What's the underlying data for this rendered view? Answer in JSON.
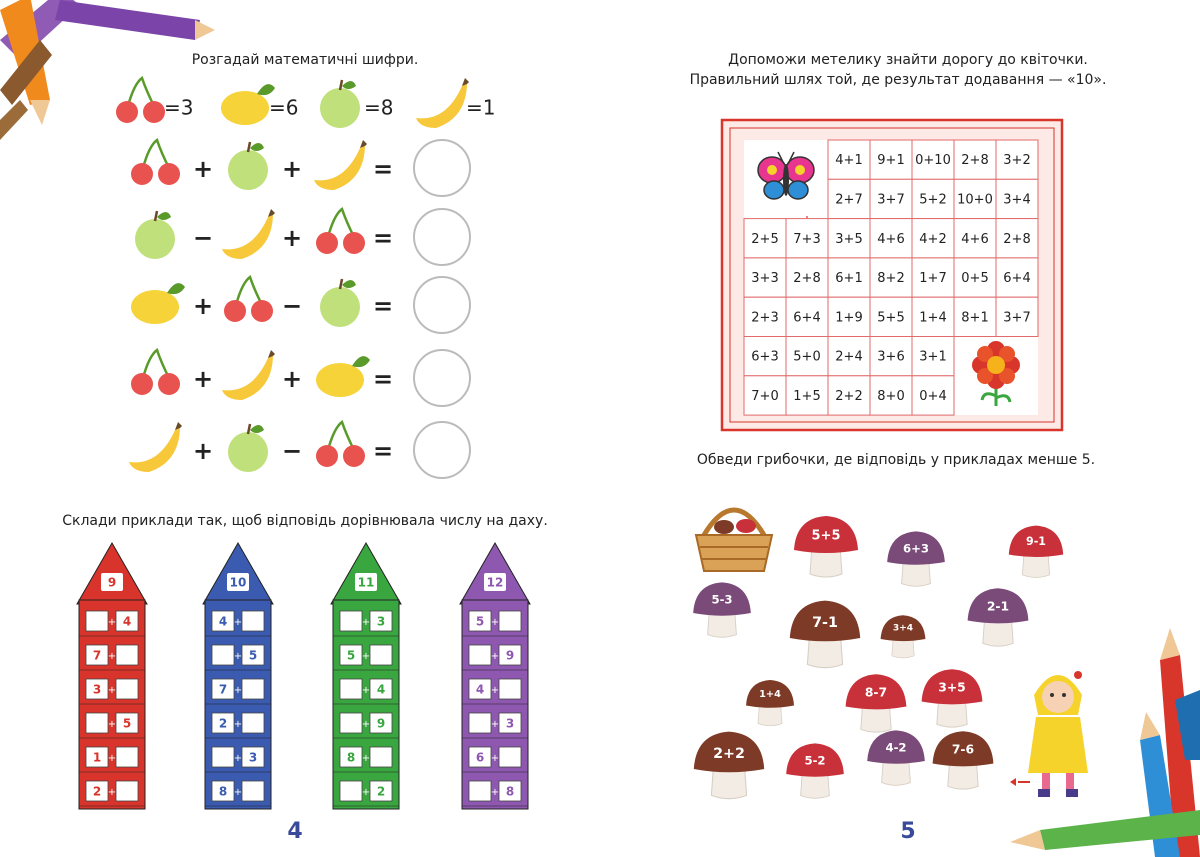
{
  "left": {
    "title": "Розгадай математичні шифри.",
    "key": [
      "=3",
      "=6",
      "=8",
      "=1"
    ],
    "equations": [
      [
        "+",
        "+",
        "="
      ],
      [
        "−",
        "+",
        "="
      ],
      [
        "+",
        "−",
        "="
      ],
      [
        "+",
        "+",
        "="
      ],
      [
        "+",
        "−",
        "="
      ]
    ],
    "houses_title": "Склади приклади так, щоб відповідь дорівнювала числу на даху.",
    "plus": "+",
    "houses": [
      {
        "roof": "9",
        "rows": [
          {
            "second": "4"
          },
          {
            "first": "7"
          },
          {
            "first": "3"
          },
          {
            "second": "5"
          },
          {
            "first": "1"
          },
          {
            "first": "2"
          }
        ]
      },
      {
        "roof": "10",
        "rows": [
          {
            "first": "4"
          },
          {
            "second": "5"
          },
          {
            "first": "7"
          },
          {
            "first": "2"
          },
          {
            "second": "3"
          },
          {
            "first": "8"
          }
        ]
      },
      {
        "roof": "11",
        "rows": [
          {
            "second": "3"
          },
          {
            "first": "5"
          },
          {
            "second": "4"
          },
          {
            "second": "9"
          },
          {
            "first": "8"
          },
          {
            "second": "2"
          }
        ]
      },
      {
        "roof": "12",
        "rows": [
          {
            "first": "5"
          },
          {
            "second": "9"
          },
          {
            "first": "4"
          },
          {
            "second": "3"
          },
          {
            "first": "6"
          },
          {
            "second": "8"
          }
        ]
      }
    ],
    "page_number": "4"
  },
  "right": {
    "maze_title": [
      "Допоможи метелику знайти дорогу до квіточки.",
      "Правильний шлях той, де результат додавання — «10»."
    ],
    "maze": [
      [
        null,
        null,
        "4+1",
        "9+1",
        "0+10",
        "2+8",
        "3+2"
      ],
      [
        null,
        null,
        "2+7",
        "3+7",
        "5+2",
        "10+0",
        "3+4"
      ],
      [
        "2+5",
        "7+3",
        "3+5",
        "4+6",
        "4+2",
        "4+6",
        "2+8"
      ],
      [
        "3+3",
        "2+8",
        "6+1",
        "8+2",
        "1+7",
        "0+5",
        "6+4"
      ],
      [
        "2+3",
        "6+4",
        "1+9",
        "5+5",
        "1+4",
        "8+1",
        "3+7"
      ],
      [
        "6+3",
        "5+0",
        "2+4",
        "3+6",
        "3+1",
        null,
        null
      ],
      [
        "7+0",
        "1+5",
        "2+2",
        "8+0",
        "0+4",
        null,
        null
      ]
    ],
    "mushrooms_title": "Обведи грибочки, де відповідь у прикладах менше 5.",
    "mushrooms": [
      "5+5",
      "6+3",
      "9-1",
      "5-3",
      "7-1",
      "3+4",
      "2-1",
      "1+4",
      "8-7",
      "3+5",
      "2+2",
      "5-2",
      "4-2",
      "7-6"
    ],
    "page_number": "5"
  }
}
